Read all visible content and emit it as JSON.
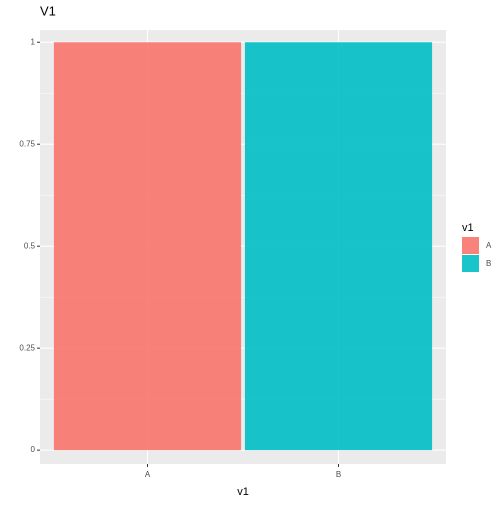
{
  "chart_data": {
    "type": "bar",
    "title": "V1",
    "x_label": "v1",
    "legend_title": "v1",
    "categories": [
      "A",
      "B"
    ],
    "series": [
      {
        "name": "A",
        "color": "#F8766D",
        "values": [
          1,
          null
        ]
      },
      {
        "name": "B",
        "color": "#00BFC4",
        "values": [
          null,
          1
        ]
      }
    ],
    "ylim": [
      -0.034,
      1.03
    ],
    "yticks": [
      0,
      0.25,
      0.5,
      0.75,
      1
    ],
    "grid": true
  }
}
